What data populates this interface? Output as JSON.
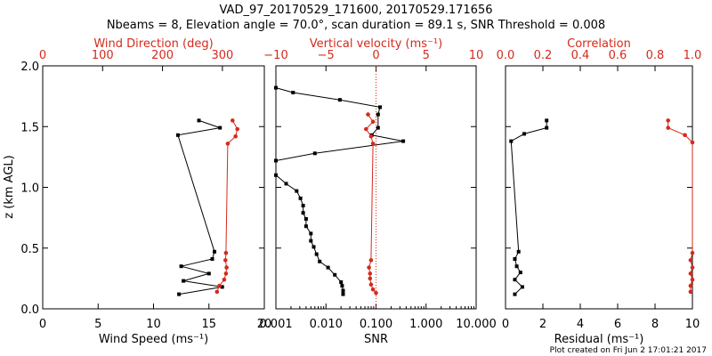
{
  "title": {
    "line1": "VAD_97_20170529_171600, 20170529.171656",
    "line2": "Nbeams = 8, Elevation angle = 70.0°, scan duration = 89.1 s, SNR Threshold = 0.008"
  },
  "footer": "Plot created on Fri Jun  2 17:01:21 2017",
  "colors": {
    "black": "#000000",
    "red": "#d42a1c"
  },
  "chart_data": [
    {
      "type": "line",
      "ylabel": "z (km AGL)",
      "ylim": [
        0,
        2
      ],
      "yticks": [
        "0.0",
        "0.5",
        "1.0",
        "1.5",
        "2.0"
      ],
      "bottom_axis": {
        "label": "Wind Speed (ms⁻¹)",
        "lim": [
          0,
          20
        ],
        "ticks": [
          "0",
          "5",
          "10",
          "15",
          "20"
        ]
      },
      "top_axis": {
        "label": "Wind Direction (deg)",
        "lim": [
          0,
          370
        ],
        "ticks": [
          "0",
          "100",
          "200",
          "300"
        ]
      },
      "series": [
        {
          "axis": "bottom",
          "color": "#000000",
          "x": [
            12.3,
            16.2,
            12.7,
            15.0,
            12.5,
            15.3,
            15.5,
            12.2,
            16.0,
            14.1
          ],
          "y": [
            0.12,
            0.18,
            0.23,
            0.29,
            0.35,
            0.41,
            0.47,
            1.43,
            1.49,
            1.55
          ]
        },
        {
          "axis": "top",
          "color": "#d42a1c",
          "x": [
            291,
            295,
            303,
            306,
            307,
            305,
            306,
            309,
            322,
            325,
            317
          ],
          "y": [
            0.14,
            0.19,
            0.24,
            0.29,
            0.34,
            0.4,
            0.46,
            1.36,
            1.42,
            1.48,
            1.55
          ]
        }
      ]
    },
    {
      "type": "line",
      "ylim": [
        0,
        2
      ],
      "bottom_axis": {
        "label": "SNR",
        "scale": "log",
        "lim": [
          0.001,
          10
        ],
        "ticks": [
          "0.001",
          "0.010",
          "0.100",
          "1.000",
          "10.000"
        ]
      },
      "top_axis": {
        "label": "Vertical velocity (ms⁻¹)",
        "lim": [
          -10,
          10
        ],
        "ticks": [
          "−10",
          "−5",
          "0",
          "5",
          "10"
        ]
      },
      "reference_line": {
        "axis": "top",
        "value": 0,
        "style": "dotted",
        "color": "#d42a1c"
      },
      "series": [
        {
          "axis": "bottom",
          "color": "#000000",
          "x": [
            0.022,
            0.022,
            0.021,
            0.02,
            0.015,
            0.011,
            0.0075,
            0.0065,
            0.0057,
            0.005,
            0.005,
            0.004,
            0.004,
            0.0035,
            0.0035,
            0.0031,
            0.0026,
            0.0016,
            0.001,
            0.001,
            0.006,
            0.35,
            0.082,
            0.11,
            0.11,
            0.12,
            0.019,
            0.0022,
            0.001
          ],
          "y": [
            0.12,
            0.15,
            0.19,
            0.22,
            0.28,
            0.34,
            0.39,
            0.45,
            0.51,
            0.56,
            0.62,
            0.68,
            0.74,
            0.79,
            0.85,
            0.91,
            0.97,
            1.03,
            1.1,
            1.22,
            1.28,
            1.38,
            1.43,
            1.49,
            1.6,
            1.66,
            1.72,
            1.78,
            1.82
          ]
        },
        {
          "axis": "top",
          "color": "#d42a1c",
          "x": [
            0,
            -0.3,
            -0.5,
            -0.6,
            -0.6,
            -0.7,
            -0.5,
            -0.3,
            -0.5,
            -1.0,
            -0.3,
            -0.8
          ],
          "y": [
            0.13,
            0.16,
            0.2,
            0.25,
            0.29,
            0.34,
            0.4,
            1.36,
            1.42,
            1.48,
            1.54,
            1.6
          ]
        }
      ]
    },
    {
      "type": "line",
      "ylim": [
        0,
        2
      ],
      "bottom_axis": {
        "label": "Residual (ms⁻¹)",
        "lim": [
          0,
          10
        ],
        "ticks": [
          "0",
          "2",
          "4",
          "6",
          "8",
          "10"
        ]
      },
      "top_axis": {
        "label": "Correlation",
        "lim": [
          0,
          1
        ],
        "ticks": [
          "0.0",
          "0.2",
          "0.4",
          "0.6",
          "0.8",
          "1.0"
        ]
      },
      "series": [
        {
          "axis": "bottom",
          "color": "#000000",
          "x": [
            0.5,
            0.9,
            0.5,
            0.8,
            0.6,
            0.5,
            0.7,
            0.3,
            1.0,
            2.2,
            2.2
          ],
          "y": [
            0.12,
            0.18,
            0.24,
            0.3,
            0.35,
            0.41,
            0.47,
            1.38,
            1.44,
            1.49,
            1.55
          ]
        },
        {
          "axis": "top",
          "color": "#d42a1c",
          "x": [
            0.99,
            0.99,
            1.0,
            0.99,
            1.0,
            0.99,
            1.0,
            1.0,
            0.96,
            0.87,
            0.87
          ],
          "y": [
            0.14,
            0.19,
            0.24,
            0.29,
            0.34,
            0.4,
            0.46,
            1.37,
            1.43,
            1.49,
            1.55
          ]
        }
      ]
    }
  ]
}
